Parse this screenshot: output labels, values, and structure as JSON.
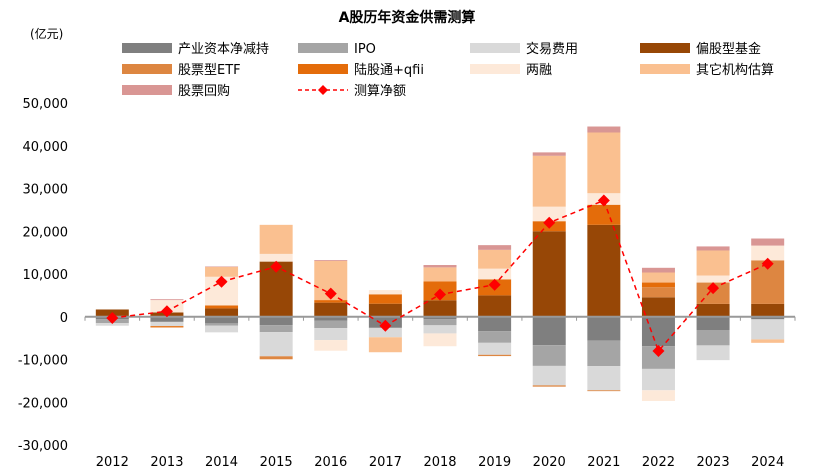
{
  "chart_data": {
    "type": "bar",
    "stacked": true,
    "title": "A股历年资金供需测算",
    "ylabel": "(亿元)",
    "ylim": [
      -30000,
      50000
    ],
    "yticks": [
      "-30,000",
      "-20,000",
      "-10,000",
      "0",
      "10,000",
      "20,000",
      "30,000",
      "40,000",
      "50,000"
    ],
    "ytick_values": [
      -30000,
      -20000,
      -10000,
      0,
      10000,
      20000,
      30000,
      40000,
      50000
    ],
    "categories": [
      "2012",
      "2013",
      "2014",
      "2015",
      "2016",
      "2017",
      "2018",
      "2019",
      "2020",
      "2021",
      "2022",
      "2023",
      "2024"
    ],
    "legend_placement": "top",
    "series": [
      {
        "name": "产业资本净减持",
        "color": "#7f7f7f",
        "values": [
          -600,
          -1200,
          -1550,
          -1950,
          -950,
          -2600,
          -600,
          -3350,
          -6650,
          -5600,
          -6900,
          -3100,
          -600
        ]
      },
      {
        "name": "IPO",
        "color": "#a5a5a5",
        "values": [
          -900,
          0,
          -550,
          -1650,
          -1700,
          0,
          -1400,
          -2750,
          -4850,
          -5950,
          -5300,
          -3600,
          0
        ]
      },
      {
        "name": "交易费用",
        "color": "#d9d9d9",
        "values": [
          -600,
          -1000,
          -1550,
          -5650,
          -2800,
          -2200,
          -1900,
          -2800,
          -4550,
          -5650,
          -5000,
          -3450,
          -4700
        ]
      },
      {
        "name": "偏股型基金",
        "color": "#974706",
        "values": [
          1700,
          1000,
          1950,
          12900,
          3300,
          3050,
          3850,
          5000,
          20000,
          21500,
          4550,
          3000,
          3000
        ]
      },
      {
        "name": "股票型ETF",
        "color": "#dd8641",
        "values": [
          0,
          0,
          0,
          -700,
          0,
          0,
          0,
          -300,
          -300,
          -200,
          2350,
          5000,
          10200
        ]
      },
      {
        "name": "陆股通+qfii",
        "color": "#e46c0a",
        "values": [
          0,
          -300,
          700,
          0,
          600,
          2200,
          4400,
          3750,
          2350,
          4700,
          1100,
          0,
          0
        ]
      },
      {
        "name": "两融",
        "color": "#fde9d9",
        "values": [
          0,
          2900,
          6700,
          1800,
          -2500,
          1000,
          -3000,
          2500,
          3400,
          2700,
          -2500,
          1650,
          3450
        ]
      },
      {
        "name": "其它机构估算",
        "color": "#fac090",
        "values": [
          0,
          0,
          2300,
          6800,
          9150,
          -3500,
          3300,
          4400,
          11900,
          14200,
          2350,
          5850,
          -800
        ]
      },
      {
        "name": "股票回购",
        "color": "#d99694",
        "values": [
          0,
          200,
          100,
          0,
          200,
          0,
          550,
          1100,
          800,
          1400,
          1100,
          950,
          1650
        ]
      }
    ],
    "line_series": {
      "name": "测算净额",
      "color": "#ff0000",
      "values": [
        -300,
        1300,
        8200,
        11700,
        5400,
        -2100,
        5200,
        7500,
        22000,
        27200,
        -8000,
        6700,
        12400
      ]
    }
  }
}
